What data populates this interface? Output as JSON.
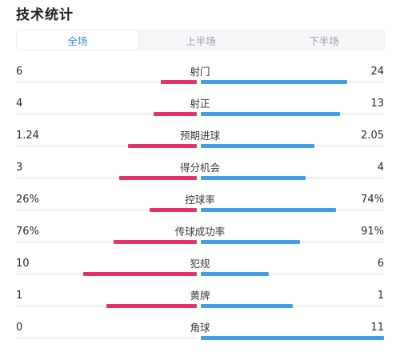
{
  "title": "技术统计",
  "tabs": [
    {
      "label": "全场",
      "active": true
    },
    {
      "label": "上半场",
      "active": false
    },
    {
      "label": "下半场",
      "active": false
    }
  ],
  "colors": {
    "home": "#e33266",
    "away": "#3e9fe7",
    "active_tab": "#3a8ee6"
  },
  "stats": [
    {
      "label": "射门",
      "home": "6",
      "away": "24",
      "home_share": 0.2,
      "away_share": 0.8
    },
    {
      "label": "射正",
      "home": "4",
      "away": "13",
      "home_share": 0.24,
      "away_share": 0.76
    },
    {
      "label": "预期进球",
      "home": "1.24",
      "away": "2.05",
      "home_share": 0.38,
      "away_share": 0.62
    },
    {
      "label": "得分机会",
      "home": "3",
      "away": "4",
      "home_share": 0.43,
      "away_share": 0.57
    },
    {
      "label": "控球率",
      "home": "26%",
      "away": "74%",
      "home_share": 0.26,
      "away_share": 0.74
    },
    {
      "label": "传球成功率",
      "home": "76%",
      "away": "91%",
      "home_share": 0.46,
      "away_share": 0.54
    },
    {
      "label": "犯规",
      "home": "10",
      "away": "6",
      "home_share": 0.63,
      "away_share": 0.37
    },
    {
      "label": "黄牌",
      "home": "1",
      "away": "1",
      "home_share": 0.5,
      "away_share": 0.5
    },
    {
      "label": "角球",
      "home": "0",
      "away": "11",
      "home_share": 0.0,
      "away_share": 1.0
    }
  ]
}
